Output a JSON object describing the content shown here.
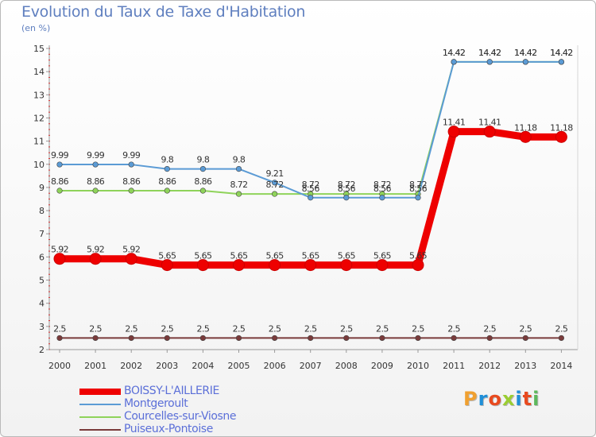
{
  "title": "Evolution du Taux de Taxe d'Habitation",
  "subtitle": "(en %)",
  "logo": {
    "text": "Proxiti",
    "colors": [
      "#f0a030",
      "#1f8fd8",
      "#e84a1f",
      "#9acd32",
      "#1f8fd8",
      "#e84a1f",
      "#5cb85c"
    ]
  },
  "chart_data": {
    "type": "line",
    "x": [
      "2000",
      "2001",
      "2002",
      "2003",
      "2004",
      "2005",
      "2006",
      "2007",
      "2008",
      "2009",
      "2010",
      "2011",
      "2012",
      "2013",
      "2014"
    ],
    "ylim": [
      2,
      15
    ],
    "yticks": [
      2,
      3,
      4,
      5,
      6,
      7,
      8,
      9,
      10,
      11,
      12,
      13,
      14,
      15
    ],
    "grid": false,
    "legend_position": "bottom-left",
    "series": [
      {
        "name": "BOISSY-L'AILLERIE",
        "color": "#ee0000",
        "values": [
          5.92,
          5.92,
          5.92,
          5.65,
          5.65,
          5.65,
          5.65,
          5.65,
          5.65,
          5.65,
          5.65,
          11.41,
          11.41,
          11.18,
          11.18
        ],
        "labels": [
          "5.92",
          "5.92",
          "5.92",
          "5.65",
          "5.65",
          "5.65",
          "5.65",
          "5.65",
          "5.65",
          "5.65",
          "5.65",
          "11.41",
          "11.41",
          "11.18",
          "11.18"
        ]
      },
      {
        "name": "Montgeroult",
        "color": "#5b9bd5",
        "values": [
          9.99,
          9.99,
          9.99,
          9.8,
          9.8,
          9.8,
          9.21,
          8.56,
          8.56,
          8.56,
          8.56,
          14.42,
          14.42,
          14.42,
          14.42
        ],
        "labels": [
          "9.99",
          "9.99",
          "9.99",
          "9.8",
          "9.8",
          "9.8",
          "9.21",
          "8.56",
          "8.56",
          "8.56",
          "8.56",
          "14.42",
          "14.42",
          "14.42",
          "14.42"
        ]
      },
      {
        "name": "Courcelles-sur-Viosne",
        "color": "#8fd35a",
        "values": [
          8.86,
          8.86,
          8.86,
          8.86,
          8.86,
          8.72,
          8.72,
          8.72,
          8.72,
          8.72,
          8.72,
          14.42,
          14.42,
          14.42,
          14.42
        ],
        "labels": [
          "8.86",
          "8.86",
          "8.86",
          "8.86",
          "8.86",
          "8.72",
          "8.72",
          "8.72",
          "8.72",
          "8.72",
          "8.72",
          "14.42",
          "14.42",
          "14.42",
          "14.42"
        ]
      },
      {
        "name": "Puiseux-Pontoise",
        "color": "#7a3b3b",
        "values": [
          2.5,
          2.5,
          2.5,
          2.5,
          2.5,
          2.5,
          2.5,
          2.5,
          2.5,
          2.5,
          2.5,
          2.5,
          2.5,
          2.5,
          2.5
        ],
        "labels": [
          "2.5",
          "2.5",
          "2.5",
          "2.5",
          "2.5",
          "2.5",
          "2.5",
          "2.5",
          "2.5",
          "2.5",
          "2.5",
          "2.5",
          "2.5",
          "2.5",
          "2.5"
        ]
      }
    ]
  }
}
